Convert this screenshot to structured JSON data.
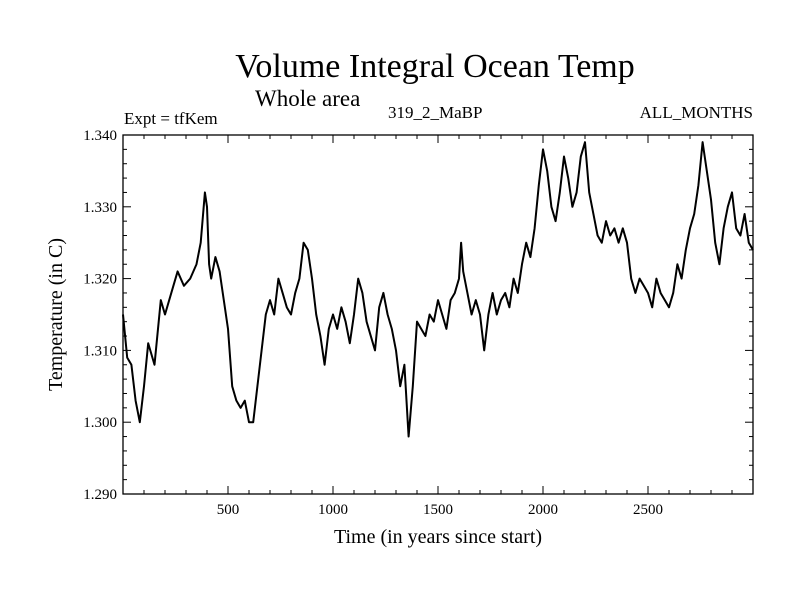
{
  "chart_data": {
    "type": "line",
    "title": "Volume Integral Ocean Temp",
    "subtitle": "Whole area",
    "annotations": {
      "experiment": "Expt = tfKem",
      "run": "319_2_MaBP",
      "months": "ALL_MONTHS"
    },
    "xlabel": "Time (in years since start)",
    "ylabel": "Temperature (in C)",
    "xlim": [
      0,
      3000
    ],
    "ylim": [
      1.29,
      1.34
    ],
    "xticks": [
      500,
      1000,
      1500,
      2000,
      2500
    ],
    "xtick_labels": [
      "500",
      "1000",
      "1500",
      "2000",
      "2500"
    ],
    "yticks": [
      1.29,
      1.3,
      1.31,
      1.32,
      1.33,
      1.34
    ],
    "ytick_labels": [
      "1.290",
      "1.300",
      "1.310",
      "1.320",
      "1.330",
      "1.340"
    ],
    "grid": false,
    "line_color": "#000000",
    "series": [
      {
        "x": [
          0,
          20,
          40,
          60,
          80,
          100,
          120,
          150,
          180,
          200,
          230,
          260,
          290,
          320,
          350,
          370,
          390,
          400,
          410,
          420,
          440,
          460,
          480,
          500,
          520,
          540,
          560,
          580,
          600,
          620,
          640,
          660,
          680,
          700,
          720,
          740,
          760,
          780,
          800,
          820,
          840,
          860,
          880,
          900,
          920,
          940,
          960,
          980,
          1000,
          1020,
          1040,
          1060,
          1080,
          1100,
          1120,
          1140,
          1160,
          1180,
          1200,
          1220,
          1240,
          1260,
          1280,
          1300,
          1320,
          1340,
          1360,
          1380,
          1400,
          1420,
          1440,
          1460,
          1480,
          1500,
          1520,
          1540,
          1560,
          1580,
          1600,
          1610,
          1620,
          1640,
          1660,
          1680,
          1700,
          1720,
          1740,
          1760,
          1780,
          1800,
          1820,
          1840,
          1860,
          1880,
          1900,
          1920,
          1940,
          1960,
          1980,
          2000,
          2020,
          2040,
          2060,
          2080,
          2100,
          2120,
          2140,
          2160,
          2180,
          2200,
          2220,
          2240,
          2260,
          2280,
          2300,
          2320,
          2340,
          2360,
          2380,
          2400,
          2420,
          2440,
          2460,
          2480,
          2500,
          2520,
          2540,
          2560,
          2580,
          2600,
          2620,
          2640,
          2660,
          2680,
          2700,
          2720,
          2740,
          2760,
          2780,
          2800,
          2820,
          2840,
          2860,
          2880,
          2900,
          2920,
          2940,
          2960,
          2980,
          3000
        ],
        "y": [
          1.315,
          1.309,
          1.308,
          1.303,
          1.3,
          1.305,
          1.311,
          1.308,
          1.317,
          1.315,
          1.318,
          1.321,
          1.319,
          1.32,
          1.322,
          1.325,
          1.332,
          1.33,
          1.322,
          1.32,
          1.323,
          1.321,
          1.317,
          1.313,
          1.305,
          1.303,
          1.302,
          1.303,
          1.3,
          1.3,
          1.305,
          1.31,
          1.315,
          1.317,
          1.315,
          1.32,
          1.318,
          1.316,
          1.315,
          1.318,
          1.32,
          1.325,
          1.324,
          1.32,
          1.315,
          1.312,
          1.308,
          1.313,
          1.315,
          1.313,
          1.316,
          1.314,
          1.311,
          1.315,
          1.32,
          1.318,
          1.314,
          1.312,
          1.31,
          1.316,
          1.318,
          1.315,
          1.313,
          1.31,
          1.305,
          1.308,
          1.298,
          1.305,
          1.314,
          1.313,
          1.312,
          1.315,
          1.314,
          1.317,
          1.315,
          1.313,
          1.317,
          1.318,
          1.32,
          1.325,
          1.321,
          1.318,
          1.315,
          1.317,
          1.315,
          1.31,
          1.315,
          1.318,
          1.315,
          1.317,
          1.318,
          1.316,
          1.32,
          1.318,
          1.322,
          1.325,
          1.323,
          1.327,
          1.333,
          1.338,
          1.335,
          1.33,
          1.328,
          1.332,
          1.337,
          1.334,
          1.33,
          1.332,
          1.337,
          1.339,
          1.332,
          1.329,
          1.326,
          1.325,
          1.328,
          1.326,
          1.327,
          1.325,
          1.327,
          1.325,
          1.32,
          1.318,
          1.32,
          1.319,
          1.318,
          1.316,
          1.32,
          1.318,
          1.317,
          1.316,
          1.318,
          1.322,
          1.32,
          1.324,
          1.327,
          1.329,
          1.333,
          1.339,
          1.335,
          1.331,
          1.325,
          1.322,
          1.327,
          1.33,
          1.332,
          1.327,
          1.326,
          1.329,
          1.325,
          1.324
        ]
      }
    ]
  }
}
